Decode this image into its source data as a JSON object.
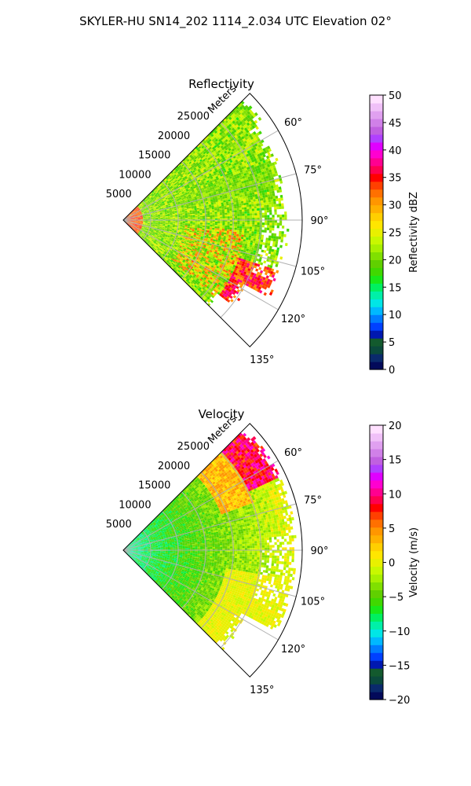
{
  "suptitle": "SKYLER-HU  SN14_202  1114_2.034 UTC Elevation 02°",
  "chart_data": [
    {
      "type": "heatmap",
      "projection": "polar-sector",
      "title": "Reflectivity",
      "radial_label": "Meters",
      "radial_ticks": [
        5000,
        10000,
        15000,
        20000,
        25000
      ],
      "radial_tick_labels": [
        "5000",
        "10000",
        "15000",
        "20000",
        "25000"
      ],
      "rmax": 32500,
      "azimuth_range": [
        45,
        135
      ],
      "azimuth_ticks": [
        60,
        75,
        90,
        105,
        120,
        135
      ],
      "azimuth_tick_labels": [
        "60°",
        "75°",
        "90°",
        "105°",
        "120°",
        "135°"
      ],
      "grid": true,
      "colorbar": {
        "label": "Reflectivity dBZ",
        "min": 0,
        "max": 50,
        "ticks": [
          0,
          5,
          10,
          15,
          20,
          25,
          30,
          35,
          40,
          45,
          50
        ],
        "tick_labels": [
          "0",
          "5",
          "10",
          "15",
          "20",
          "25",
          "30",
          "35",
          "40",
          "45",
          "50"
        ]
      },
      "field_summary": {
        "typical_value": 22,
        "near_radar_value": 36,
        "high_cells_near_azimuth": [
          115,
          125
        ],
        "high_cells_value": 35
      }
    },
    {
      "type": "heatmap",
      "projection": "polar-sector",
      "title": "Velocity",
      "radial_label": "Meters",
      "radial_ticks": [
        5000,
        10000,
        15000,
        20000,
        25000
      ],
      "radial_tick_labels": [
        "5000",
        "10000",
        "15000",
        "20000",
        "25000"
      ],
      "rmax": 32500,
      "azimuth_range": [
        45,
        135
      ],
      "azimuth_ticks": [
        60,
        75,
        90,
        105,
        120,
        135
      ],
      "azimuth_tick_labels": [
        "60°",
        "75°",
        "90°",
        "105°",
        "120°",
        "135°"
      ],
      "grid": true,
      "colorbar": {
        "label": "Velocity (m/s)",
        "min": -20,
        "max": 20,
        "ticks": [
          -20,
          -15,
          -10,
          -5,
          0,
          5,
          10,
          15,
          20
        ],
        "tick_labels": [
          "−20",
          "−15",
          "−10",
          "−5",
          "0",
          "5",
          "10",
          "15",
          "20"
        ]
      },
      "field_summary": {
        "near_radar_value": -9,
        "far_range_value": 0,
        "max_value_near_azimuth": 55,
        "max_value": 11
      }
    }
  ],
  "reflectivity_colors": [
    "#030a5a",
    "#0a2a6c",
    "#0b4a3c",
    "#135a2e",
    "#0018b0",
    "#0040ff",
    "#007cff",
    "#00b8ff",
    "#00e6e6",
    "#00f0a8",
    "#00f060",
    "#18e818",
    "#40d800",
    "#60d000",
    "#80e000",
    "#a8f000",
    "#c8f800",
    "#e8f000",
    "#ffe600",
    "#ffcf00",
    "#ffb000",
    "#ff9600",
    "#ff7000",
    "#ff4000",
    "#ff0000",
    "#ff0050",
    "#ff0090",
    "#ff00d0",
    "#e000ff",
    "#b040ff",
    "#c060e0",
    "#d080e8",
    "#e0a0f0",
    "#f0c0f8",
    "#ffe0ff"
  ],
  "velocity_colors": [
    "#030a5a",
    "#0a2a6c",
    "#0b4a3c",
    "#135a2e",
    "#0018b0",
    "#0040ff",
    "#007cff",
    "#00b8ff",
    "#00e6e6",
    "#00f0a8",
    "#00f060",
    "#18e818",
    "#40d800",
    "#60d000",
    "#80e000",
    "#a8f000",
    "#c8f800",
    "#e8f000",
    "#ffe600",
    "#ffcf00",
    "#ffb000",
    "#ff9600",
    "#ff7000",
    "#ff4000",
    "#ff0000",
    "#ff0050",
    "#ff0090",
    "#ff00d0",
    "#e000ff",
    "#b040ff",
    "#c060e0",
    "#d080e8",
    "#e0a0f0",
    "#f0c0f8",
    "#ffe0ff"
  ]
}
